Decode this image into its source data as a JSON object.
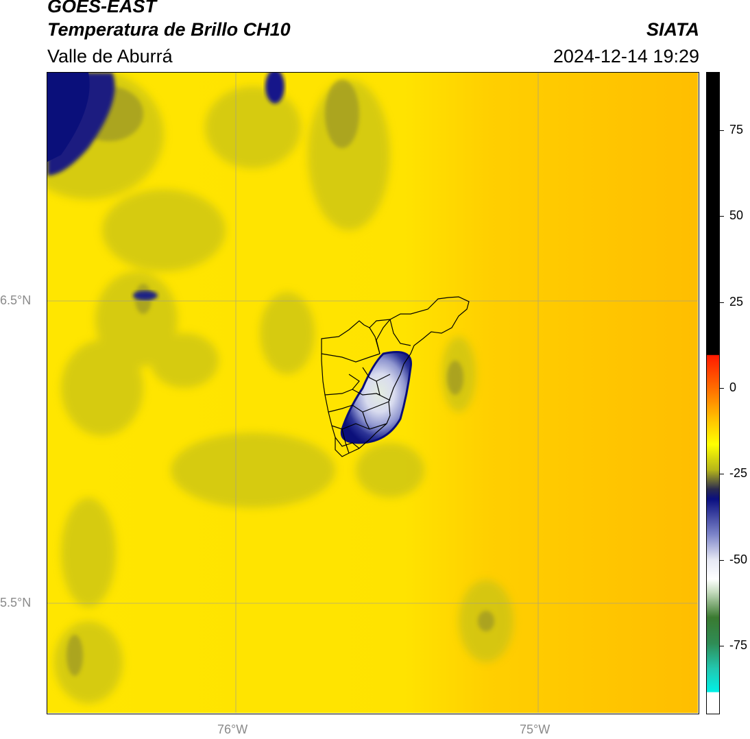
{
  "header": {
    "satellite": "GOES-EAST",
    "product": "Temperatura de Brillo CH10",
    "region": "Valle de Aburrá",
    "organization": "SIATA",
    "timestamp": "2024-12-14 19:29"
  },
  "map": {
    "lat_labels": [
      "6.5°N",
      "5.5°N"
    ],
    "lon_labels": [
      "76°W",
      "75°W"
    ],
    "background_color": "#ffe600",
    "east_color": "#ffc000",
    "storm_colors": [
      "#0a0f7a",
      "#5a63b8",
      "#cfd3ec",
      "#e9efe6"
    ]
  },
  "colorbar": {
    "tick_labels": [
      "75",
      "50",
      "25",
      "0",
      "-25",
      "-50",
      "-75"
    ],
    "tick_values": [
      75,
      50,
      25,
      0,
      -25,
      -50,
      -75
    ],
    "range": [
      -95,
      92
    ]
  }
}
